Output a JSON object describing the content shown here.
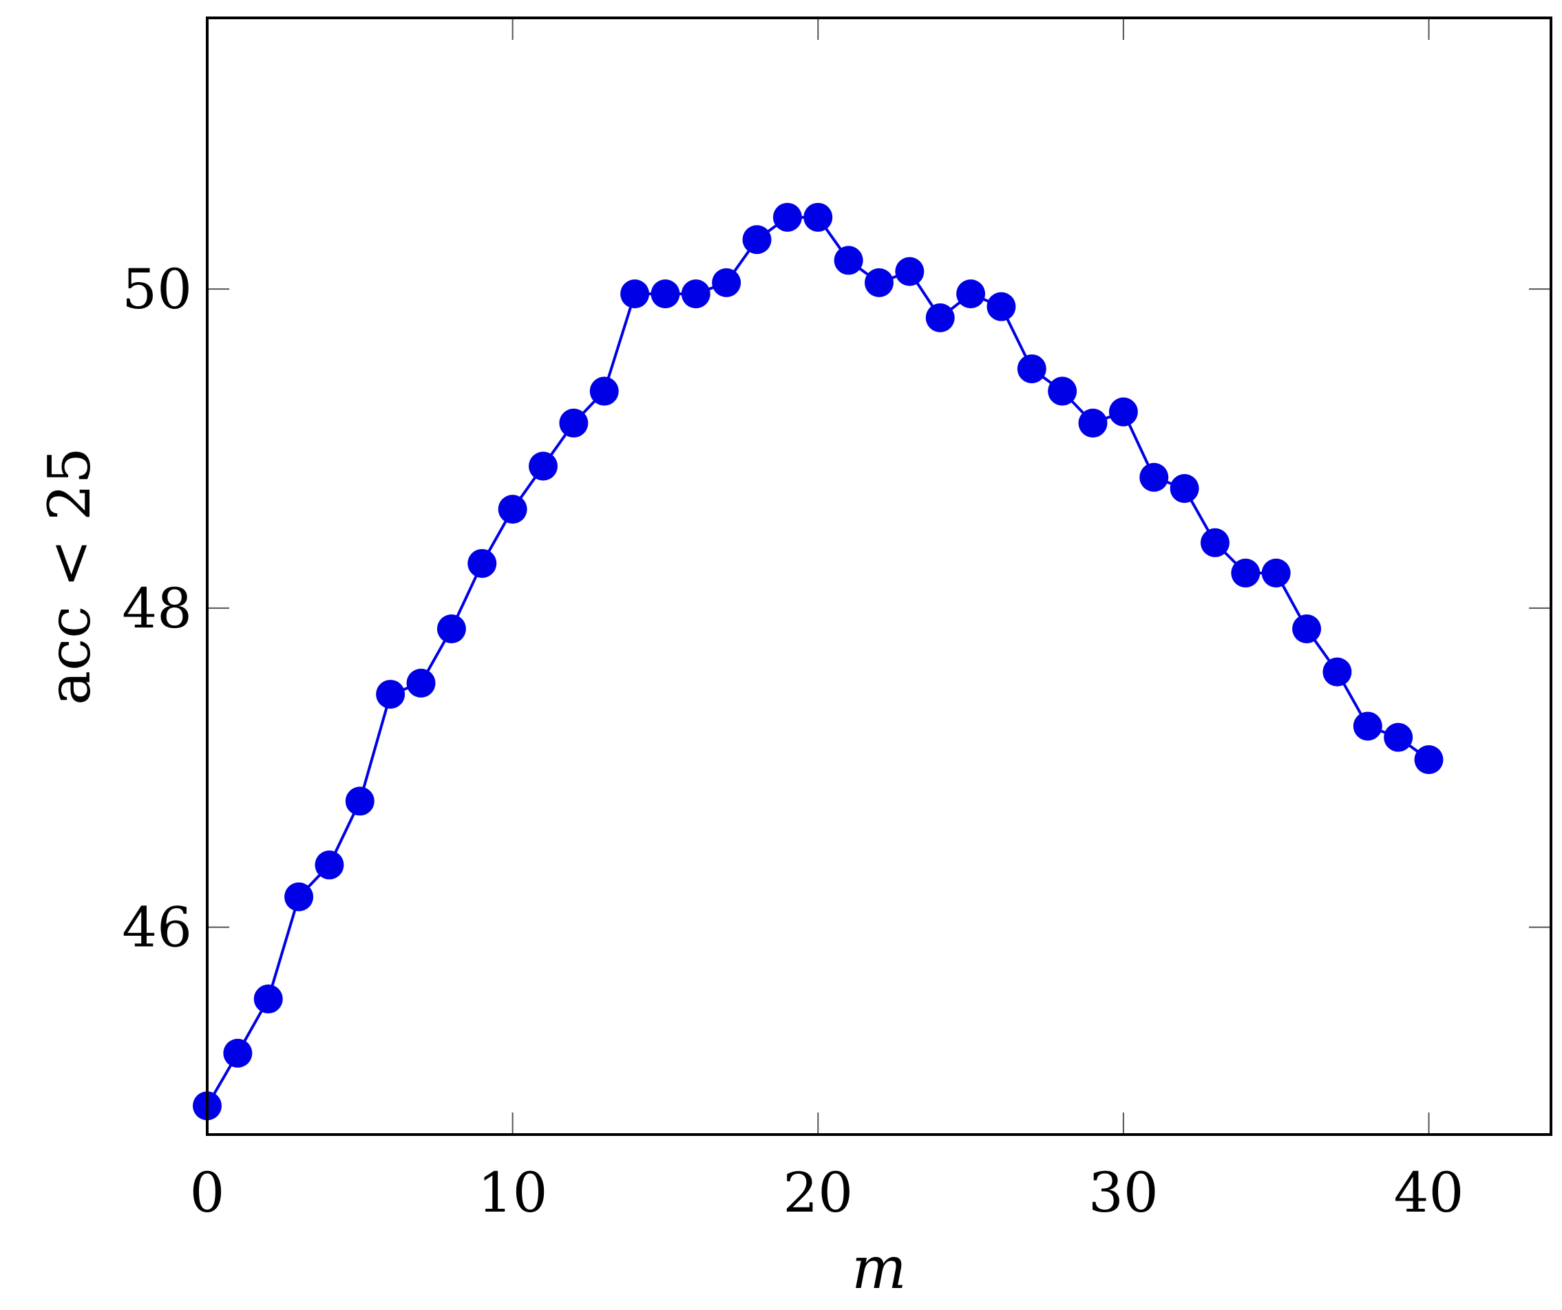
{
  "chart_data": {
    "type": "line",
    "title": "",
    "xlabel": "m",
    "ylabel": "acc < 25",
    "xlim": [
      0,
      44
    ],
    "ylim": [
      44.7,
      51.7
    ],
    "x_ticks": [
      0,
      10,
      20,
      30,
      40
    ],
    "y_ticks": [
      46,
      48,
      50
    ],
    "grid": false,
    "legend": "none",
    "series": [
      {
        "color": "#0000e6",
        "marker": "circle",
        "x": [
          0,
          1,
          2,
          3,
          4,
          5,
          6,
          7,
          8,
          9,
          10,
          11,
          12,
          13,
          14,
          15,
          16,
          17,
          18,
          19,
          20,
          21,
          22,
          23,
          24,
          25,
          26,
          27,
          28,
          29,
          30,
          31,
          32,
          33,
          34,
          35,
          36,
          37,
          38,
          39,
          40
        ],
        "values": [
          44.88,
          45.21,
          45.55,
          46.19,
          46.39,
          46.79,
          47.46,
          47.53,
          47.87,
          48.28,
          48.62,
          48.89,
          49.16,
          49.36,
          49.97,
          49.97,
          49.97,
          50.04,
          50.31,
          50.45,
          50.45,
          50.18,
          50.04,
          50.11,
          49.82,
          49.97,
          49.89,
          49.5,
          49.36,
          49.16,
          49.23,
          48.82,
          48.75,
          48.41,
          48.22,
          48.22,
          47.87,
          47.6,
          47.26,
          47.19,
          47.05
        ]
      }
    ]
  }
}
